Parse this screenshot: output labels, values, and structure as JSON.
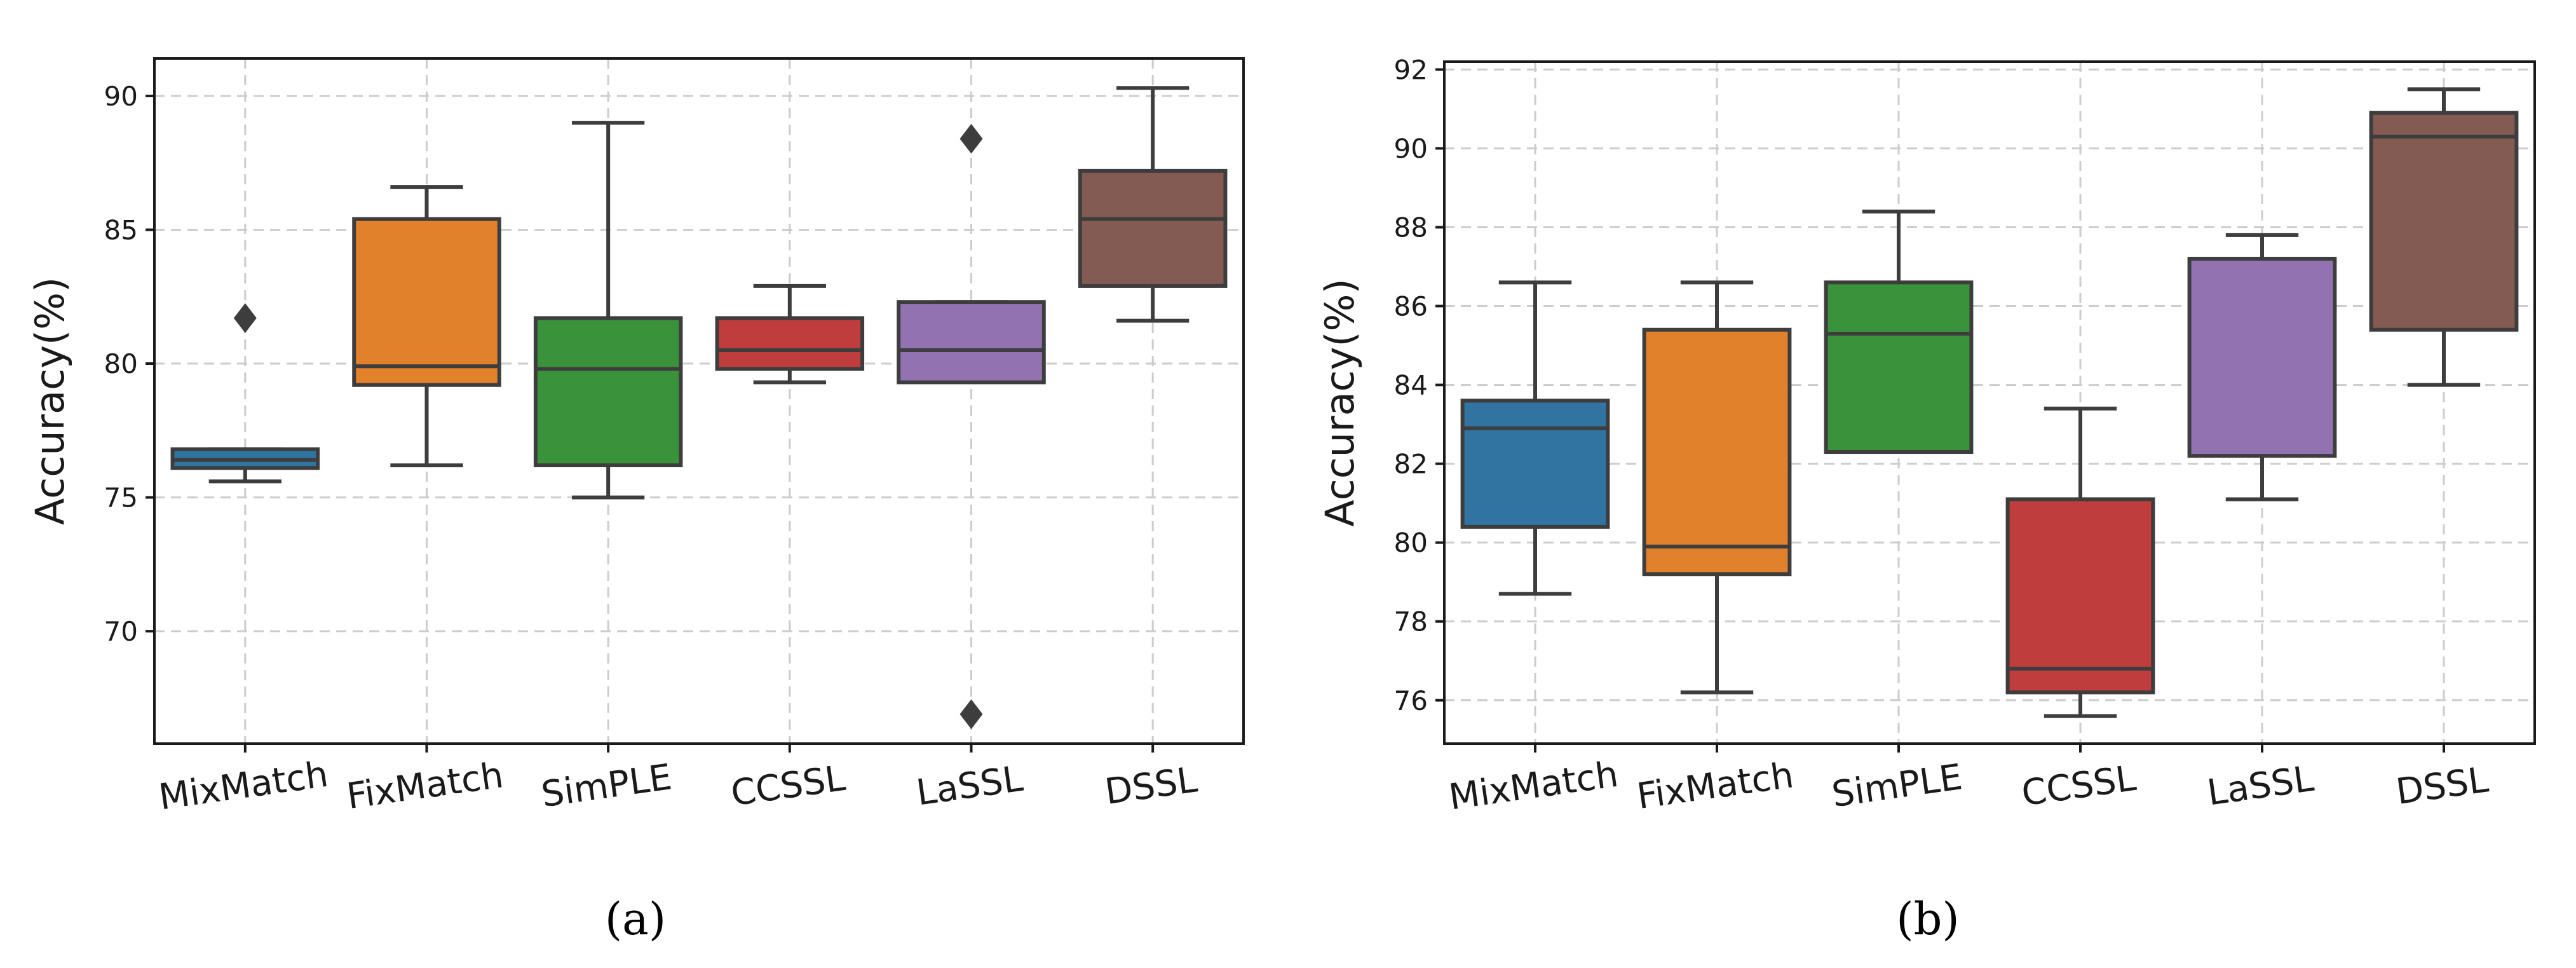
{
  "colors": {
    "MixMatch": "#3274a1",
    "FixMatch": "#e1812c",
    "SimPLE": "#3a923a",
    "CCSSL": "#c03d3e",
    "LaSSL": "#9372b2",
    "DSSL": "#845b53"
  },
  "chart_data": [
    {
      "type": "box",
      "caption": "(a)",
      "ylabel": "Accuracy(%)",
      "xlabel": "",
      "ylim": [
        65.8,
        91.4
      ],
      "yticks": [
        70,
        75,
        80,
        85,
        90
      ],
      "grid": true,
      "categories": [
        "MixMatch",
        "FixMatch",
        "SimPLE",
        "CCSSL",
        "LaSSL",
        "DSSL"
      ],
      "boxes": [
        {
          "name": "MixMatch",
          "min": 75.6,
          "q1": 76.1,
          "median": 76.4,
          "q3": 76.8,
          "max": 76.8,
          "outliers": [
            81.7
          ]
        },
        {
          "name": "FixMatch",
          "min": 76.2,
          "q1": 79.2,
          "median": 79.9,
          "q3": 85.4,
          "max": 86.6,
          "outliers": []
        },
        {
          "name": "SimPLE",
          "min": 75.0,
          "q1": 76.2,
          "median": 79.8,
          "q3": 81.7,
          "max": 89.0,
          "outliers": []
        },
        {
          "name": "CCSSL",
          "min": 79.3,
          "q1": 79.8,
          "median": 80.5,
          "q3": 81.7,
          "max": 82.9,
          "outliers": []
        },
        {
          "name": "LaSSL",
          "min": 79.3,
          "q1": 79.3,
          "median": 80.5,
          "q3": 82.3,
          "max": 82.3,
          "outliers": [
            88.4,
            66.9
          ]
        },
        {
          "name": "DSSL",
          "min": 81.6,
          "q1": 82.9,
          "median": 85.4,
          "q3": 87.2,
          "max": 90.3,
          "outliers": []
        }
      ]
    },
    {
      "type": "box",
      "caption": "(b)",
      "ylabel": "Accuracy(%)",
      "xlabel": "",
      "ylim": [
        74.9,
        92.2
      ],
      "yticks": [
        76,
        78,
        80,
        82,
        84,
        86,
        88,
        90,
        92
      ],
      "grid": true,
      "categories": [
        "MixMatch",
        "FixMatch",
        "SimPLE",
        "CCSSL",
        "LaSSL",
        "DSSL"
      ],
      "boxes": [
        {
          "name": "MixMatch",
          "min": 78.7,
          "q1": 80.4,
          "median": 82.9,
          "q3": 83.6,
          "max": 86.6,
          "outliers": []
        },
        {
          "name": "FixMatch",
          "min": 76.2,
          "q1": 79.2,
          "median": 79.9,
          "q3": 85.4,
          "max": 86.6,
          "outliers": []
        },
        {
          "name": "SimPLE",
          "min": 82.3,
          "q1": 82.3,
          "median": 85.3,
          "q3": 86.6,
          "max": 88.4,
          "outliers": []
        },
        {
          "name": "CCSSL",
          "min": 75.6,
          "q1": 76.2,
          "median": 76.8,
          "q3": 81.1,
          "max": 83.4,
          "outliers": []
        },
        {
          "name": "LaSSL",
          "min": 81.1,
          "q1": 82.2,
          "median": 87.2,
          "q3": 87.2,
          "max": 87.8,
          "outliers": []
        },
        {
          "name": "DSSL",
          "min": 84.0,
          "q1": 85.4,
          "median": 90.3,
          "q3": 90.9,
          "max": 91.5,
          "outliers": []
        }
      ]
    }
  ]
}
